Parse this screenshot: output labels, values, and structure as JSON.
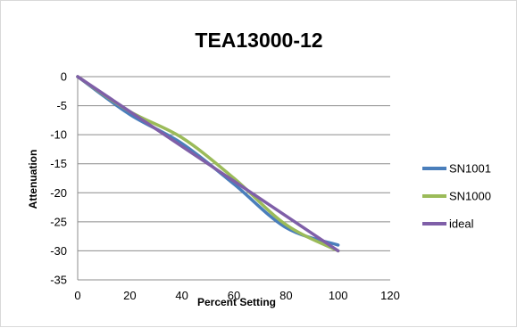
{
  "chart_data": {
    "type": "line",
    "title": "TEA13000-12",
    "xlabel": "Percent Setting",
    "ylabel": "Attenuation",
    "xlim": [
      0,
      120
    ],
    "ylim": [
      -35,
      0
    ],
    "xticks": [
      "0",
      "20",
      "40",
      "60",
      "80",
      "100",
      "120"
    ],
    "yticks": [
      "0",
      "-5",
      "-10",
      "-15",
      "-20",
      "-25",
      "-30",
      "-35"
    ],
    "grid": "horizontal",
    "legend_position": "right",
    "series": [
      {
        "name": "SN1001",
        "color": "#4a7ebb",
        "x": [
          0,
          20,
          40,
          60,
          80,
          100
        ],
        "y": [
          0,
          -6.5,
          -11.5,
          -18.5,
          -26,
          -29
        ]
      },
      {
        "name": "SN1000",
        "color": "#9bbb59",
        "x": [
          0,
          20,
          40,
          60,
          80,
          100
        ],
        "y": [
          0,
          -6,
          -10.5,
          -17.5,
          -25.5,
          -30
        ]
      },
      {
        "name": "ideal",
        "color": "#7f5fa8",
        "x": [
          0,
          20,
          40,
          60,
          80,
          100
        ],
        "y": [
          0,
          -6,
          -12,
          -18,
          -24,
          -30
        ]
      }
    ]
  }
}
